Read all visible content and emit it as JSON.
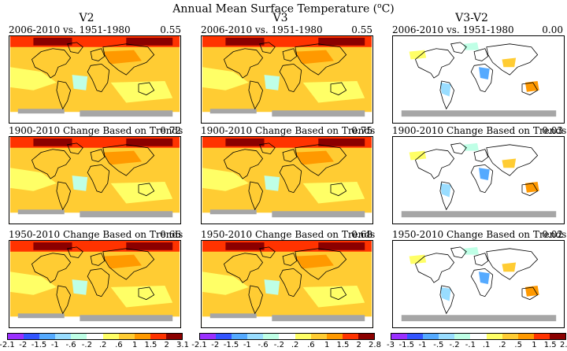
{
  "figure_title": "Annual Mean Surface Temperature (",
  "figure_title_unit": "o",
  "figure_title_end": "C)",
  "columns": [
    "V2",
    "V3",
    "V3-V2"
  ],
  "rows": [
    {
      "label": "2006-2010 vs. 1951-1980",
      "values": [
        "0.55",
        "0.55",
        "0.00"
      ]
    },
    {
      "label": "1900-2010 Change Based on Trends",
      "values": [
        "0.72",
        "0.75",
        "0.03"
      ]
    },
    {
      "label": "1950-2010 Change Based on Trends",
      "values": [
        "0.66",
        "0.68",
        "0.02"
      ]
    }
  ],
  "colorbars": [
    {
      "ticks": [
        "-2.1",
        "-2",
        "-1.5",
        "-1",
        "-.6",
        "-.2",
        ".2",
        ".6",
        "1",
        "1.5",
        "2",
        "3.1"
      ],
      "colors": [
        "#9a30ff",
        "#3355ff",
        "#55aaff",
        "#99ddff",
        "#bfffe6",
        "#ffffff",
        "#ffff66",
        "#ffcc33",
        "#ff9900",
        "#ff3300",
        "#8b0000"
      ]
    },
    {
      "ticks": [
        "-2.1",
        "-2",
        "-1.5",
        "-1",
        "-.6",
        "-.2",
        ".2",
        ".6",
        "1",
        "1.5",
        "2",
        "2.8"
      ],
      "colors": [
        "#9a30ff",
        "#3355ff",
        "#55aaff",
        "#99ddff",
        "#bfffe6",
        "#ffffff",
        "#ffff66",
        "#ffcc33",
        "#ff9900",
        "#ff3300",
        "#8b0000"
      ]
    },
    {
      "ticks": [
        "-3",
        "-1.5",
        "-1",
        "-.5",
        "-.2",
        "-.1",
        ".1",
        ".2",
        ".5",
        "1",
        "1.5",
        "2.2"
      ],
      "colors": [
        "#9a30ff",
        "#3355ff",
        "#55aaff",
        "#99ddff",
        "#bfffe6",
        "#ffffff",
        "#ffff66",
        "#ffcc33",
        "#ff9900",
        "#ff3300",
        "#8b0000"
      ]
    }
  ],
  "colors": {
    "no_data": "#a6a6a6",
    "coastline": "#000000"
  }
}
